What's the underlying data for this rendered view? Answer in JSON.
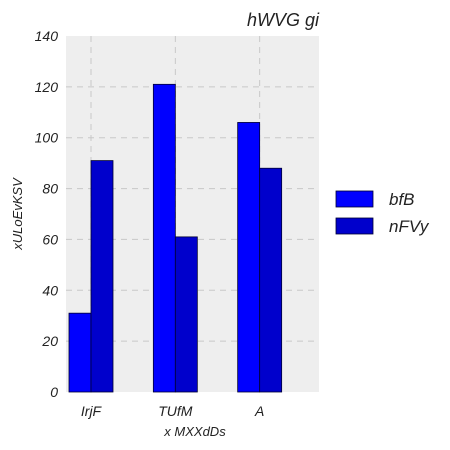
{
  "chart_data": {
    "type": "bar",
    "title": "hWVG gi",
    "xlabel": "x MXXdDs",
    "ylabel": "xULoEvKSV",
    "categories": [
      "IrjF",
      "TUfM",
      "A"
    ],
    "series": [
      {
        "name": "bfB",
        "values": [
          31,
          121,
          106
        ],
        "color": "#0000ff"
      },
      {
        "name": "nFVy",
        "values": [
          91,
          61,
          88
        ],
        "color": "#0000cc"
      }
    ],
    "ylim": [
      0,
      140
    ],
    "yticks": [
      0,
      20,
      40,
      60,
      80,
      100,
      120,
      140
    ],
    "grid": true,
    "legend_position": "right"
  }
}
